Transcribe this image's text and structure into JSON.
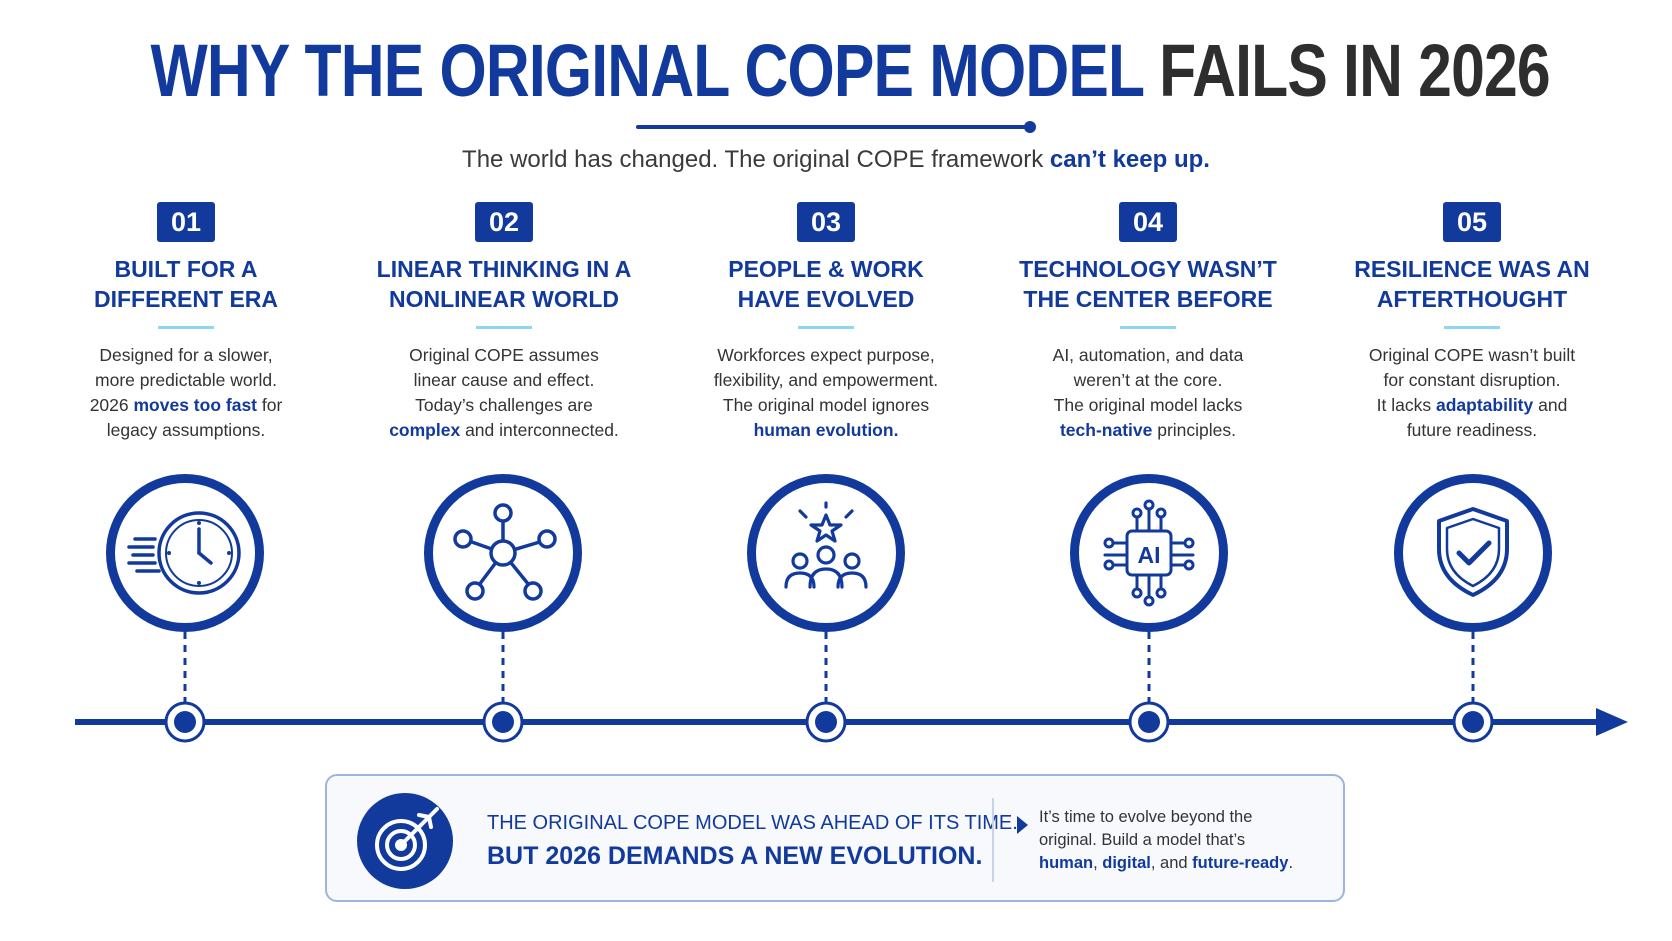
{
  "title": {
    "part1": "WHY THE ORIGINAL COPE MODEL",
    "part2": "FAILS IN 2026"
  },
  "subtitle": {
    "text": "The world has changed. The original COPE framework ",
    "highlight": "can’t keep up."
  },
  "columns": [
    {
      "number": "01",
      "heading_line1": "BUILT FOR A",
      "heading_line2": "DIFFERENT ERA",
      "desc": {
        "l1": "Designed for a slower,",
        "l2": "more predictable world.",
        "l3_a": "2026 ",
        "l3_b": "moves too fast",
        "l3_c": " for",
        "l4": "legacy assumptions."
      },
      "icon": "clock-speed-icon"
    },
    {
      "number": "02",
      "heading_line1": "LINEAR THINKING IN A",
      "heading_line2": "NONLINEAR WORLD",
      "desc": {
        "l1": "Original COPE assumes",
        "l2": "linear cause and effect.",
        "l3": "Today’s challenges are",
        "l4_a": "complex",
        "l4_b": " and interconnected."
      },
      "icon": "network-hub-icon"
    },
    {
      "number": "03",
      "heading_line1": "PEOPLE & WORK",
      "heading_line2": "HAVE EVOLVED",
      "desc": {
        "l1": "Workforces expect purpose,",
        "l2": "flexibility, and empowerment.",
        "l3": "The original model ignores",
        "l4_a": "human evolution."
      },
      "icon": "people-star-icon"
    },
    {
      "number": "04",
      "heading_line1": "TECHNOLOGY WASN’T",
      "heading_line2": "THE CENTER BEFORE",
      "desc": {
        "l1": "AI, automation, and data",
        "l2": "weren’t at the core.",
        "l3": "The original model lacks",
        "l4_a": "tech-native",
        "l4_b": " principles."
      },
      "icon": "ai-chip-icon",
      "icon_text": "AI"
    },
    {
      "number": "05",
      "heading_line1": "RESILIENCE WAS AN",
      "heading_line2": "AFTERTHOUGHT",
      "desc": {
        "l1": "Original COPE wasn’t built",
        "l2": "for constant disruption.",
        "l3_a": "It lacks ",
        "l3_b": "adaptability",
        "l3_c": " and",
        "l4": "future readiness."
      },
      "icon": "shield-check-icon"
    }
  ],
  "banner": {
    "line1": "THE ORIGINAL COPE MODEL WAS AHEAD OF ITS TIME.",
    "line2": "BUT 2026 DEMANDS A NEW EVOLUTION.",
    "right_l1": "It’s time to evolve beyond the",
    "right_l2": "original. Build a model that’s",
    "right_l3_a": "human",
    "right_l3_b": ", ",
    "right_l3_c": "digital",
    "right_l3_d": ", and ",
    "right_l3_e": "future-ready",
    "right_l3_f": ".",
    "icon": "target-icon"
  },
  "colors": {
    "primary": "#123a9c",
    "dark": "#2e2e2e",
    "accent": "#8fd6ee"
  }
}
